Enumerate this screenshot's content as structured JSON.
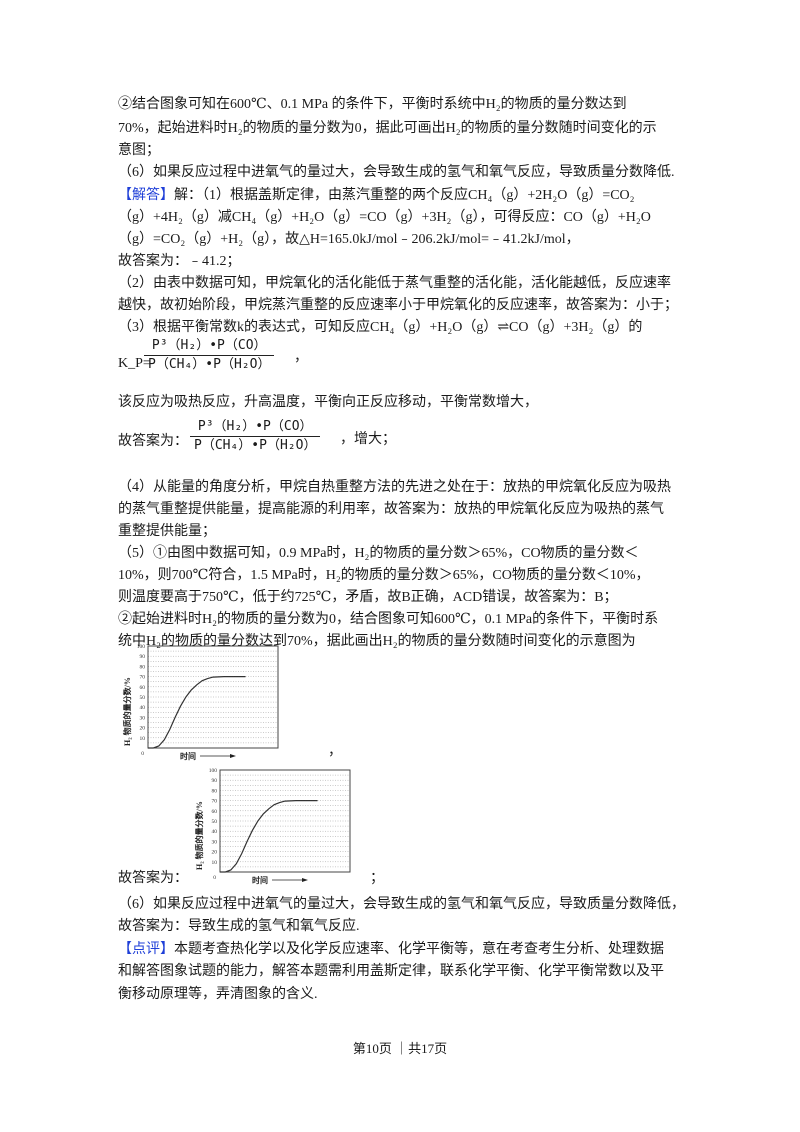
{
  "lines": [
    "②结合图象可知在600℃、0.1 MPa 的条件下，平衡时系统中H₂的物质的量分数达到",
    "70%，起始进料时H₂的物质的量分数为0，据此可画出H₂的物质的量分数随时间变化的示",
    "意图；",
    "（6）如果反应过程中进氧气的量过大，会导致生成的氢气和氧气反应，导致质量分数降低.",
    "解：（1）根据盖斯定律，由蒸汽重整的两个反应CH₄（g）+2H₂O（g）=CO₂",
    "（g）+4H₂（g）减CH₄（g）+H₂O（g）=CO（g）+3H₂（g），可得反应：CO（g）+H₂O",
    "（g）=CO₂（g）+H₂（g），故△H=165.0kJ/mol﹣206.2kJ/mol=﹣41.2kJ/mol，",
    "故答案为：﹣41.2；",
    "（2）由表中数据可知，甲烷氧化的活化能低于蒸气重整的活化能，活化能越低，反应速率",
    "越快，故初始阶段，甲烷蒸汽重整的反应速率小于甲烷氧化的反应速率，故答案为：小于；",
    "（3）根据平衡常数k的表达式，可知反应CH₄（g）+H₂O（g）⇌CO（g）+3H₂（g）的",
    "该反应为吸热反应，升高温度，平衡向正反应移动，平衡常数增大，",
    "（4）从能量的角度分析，甲烷自热重整方法的先进之处在于：放热的甲烷氧化反应为吸热",
    "的蒸气重整提供能量，提高能源的利用率，故答案为：放热的甲烷氧化反应为吸热的蒸气",
    "重整提供能量；",
    "（5）①由图中数据可知，0.9 MPa时，H₂的物质的量分数＞65%，CO物质的量分数＜",
    "10%，则700℃符合，1.5 MPa时，H₂的物质的量分数＞65%，CO物质的量分数＜10%，",
    "则温度要高于750℃，低于约725℃，矛盾，故B正确，ACD错误，故答案为：B；",
    "②起始进料时H₂的物质的量分数为0，结合图象可知600℃，0.1 MPa的条件下，平衡时系",
    "统中H₂的物质的量分数达到70%，据此画出H₂的物质的量分数随时间变化的示意图为",
    "（6）如果反应过程中进氧气的量过大，会导致生成的氢气和氧气反应，导致质量分数降低，",
    "故答案为：导致生成的氢气和氧气反应.",
    "本题考查热化学以及化学反应速率、化学平衡等，意在考查考生分析、处理数据",
    "和解答图象试题的能力，解答本题需利用盖斯定律，联系化学平衡、化学平衡常数以及平",
    "衡移动原理等，弄清图象的含义."
  ],
  "tags": {
    "answer": "【解答】",
    "comment": "【点评】"
  },
  "kp": {
    "prefix": "K_P=",
    "numerator": "P³（H₂）•P（CO）",
    "denominator": "P（CH₄）•P（H₂O）",
    "suffix": "，"
  },
  "answer3": {
    "prefix": "故答案为：",
    "suffix": "，增大；"
  },
  "fig_caption_1": "，",
  "fig_caption_2_prefix": "故答案为：",
  "fig_caption_2_suffix": "；",
  "figure": {
    "type": "line",
    "ylabel": "H₂ 物质的量分数/%",
    "xlabel": "时间",
    "x_origin_label": "0",
    "yticks": [
      10,
      20,
      30,
      40,
      50,
      60,
      70,
      80,
      90,
      100
    ],
    "ylim": [
      0,
      100
    ],
    "xlim": [
      0,
      12
    ],
    "grid": true,
    "curve": [
      [
        0.5,
        0
      ],
      [
        1,
        2
      ],
      [
        1.5,
        8
      ],
      [
        2,
        18
      ],
      [
        2.5,
        30
      ],
      [
        3,
        41
      ],
      [
        3.5,
        50
      ],
      [
        4,
        57
      ],
      [
        4.5,
        62
      ],
      [
        5,
        66
      ],
      [
        5.5,
        68
      ],
      [
        6,
        69.5
      ],
      [
        7,
        70
      ],
      [
        9,
        70
      ]
    ]
  },
  "footer": "第10页 ｜共17页",
  "colors": {
    "tag": "#1f3fd8",
    "text": "#1a1a1a"
  }
}
